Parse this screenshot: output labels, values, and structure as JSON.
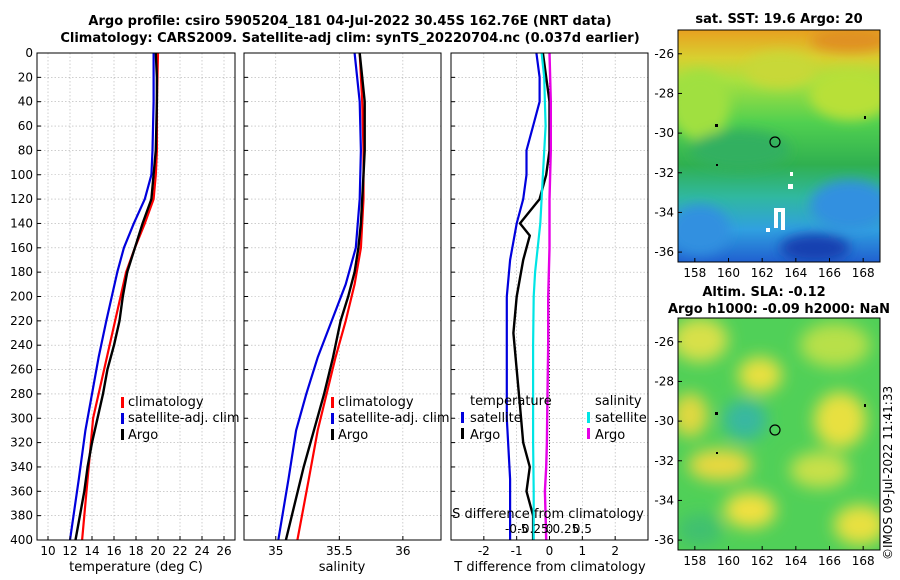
{
  "header": {
    "title_line1": "Argo profile: csiro 5905204_181 04-Jul-2022 30.45S 162.76E (NRT data)",
    "title_line2": "Climatology: CARS2009. Satellite-adj clim: synTS_20220704.nc (0.037d earlier)"
  },
  "colors": {
    "climatology": "#ff0000",
    "satellite": "#0000dd",
    "argo": "#000000",
    "sal_satellite": "#00e5e5",
    "sal_argo": "#e600e6",
    "grid": "#b0b0b0"
  },
  "chart_data": [
    {
      "id": "temperature",
      "type": "line",
      "xlabel": "temperature (deg C)",
      "ylabel": "",
      "xlim": [
        9,
        27
      ],
      "ylim": [
        400,
        0
      ],
      "xticks": [
        10,
        12,
        14,
        16,
        18,
        20,
        22,
        24,
        26
      ],
      "yticks": [
        0,
        20,
        40,
        60,
        80,
        100,
        120,
        140,
        160,
        180,
        200,
        220,
        240,
        260,
        280,
        300,
        320,
        340,
        360,
        380,
        400
      ],
      "legend": [
        "climatology",
        "satellite-adj. clim",
        "Argo"
      ],
      "series": [
        {
          "name": "climatology",
          "x": [
            20.0,
            19.9,
            19.9,
            19.8,
            19.6,
            18.8,
            17.9,
            17.1,
            16.6,
            16.1,
            15.6,
            15.1,
            14.6,
            14.1,
            13.6,
            13.1
          ],
          "depth": [
            0,
            40,
            80,
            100,
            120,
            140,
            160,
            180,
            200,
            220,
            240,
            260,
            280,
            300,
            350,
            400
          ]
        },
        {
          "name": "satellite-adj. clim",
          "x": [
            19.6,
            19.6,
            19.5,
            19.4,
            18.8,
            17.8,
            16.9,
            16.3,
            15.8,
            15.3,
            14.6,
            14.0,
            13.4,
            12.8,
            12.0
          ],
          "depth": [
            0,
            40,
            80,
            100,
            120,
            140,
            160,
            180,
            200,
            220,
            250,
            280,
            310,
            350,
            400
          ]
        },
        {
          "name": "Argo",
          "x": [
            19.8,
            19.9,
            19.9,
            19.8,
            19.4,
            18.6,
            17.9,
            17.2,
            16.8,
            16.5,
            16.0,
            15.4,
            15.0,
            14.5,
            14.0,
            13.6,
            13.3,
            12.5
          ],
          "depth": [
            0,
            20,
            40,
            80,
            120,
            140,
            160,
            180,
            200,
            220,
            240,
            260,
            280,
            300,
            320,
            340,
            360,
            400
          ]
        }
      ]
    },
    {
      "id": "salinity",
      "type": "line",
      "xlabel": "salinity",
      "ylabel": "",
      "xlim": [
        34.75,
        36.3
      ],
      "ylim": [
        400,
        0
      ],
      "xticks": [
        35,
        35.5,
        36
      ],
      "xticklabels": [
        "35",
        "35.5",
        "36"
      ],
      "legend": [
        "climatology",
        "satellite-adj. clim",
        "Argo"
      ],
      "series": [
        {
          "name": "climatology",
          "x": [
            35.66,
            35.68,
            35.69,
            35.69,
            35.67,
            35.62,
            35.55,
            35.47,
            35.4,
            35.33,
            35.26,
            35.17
          ],
          "depth": [
            0,
            40,
            80,
            120,
            160,
            190,
            220,
            250,
            280,
            310,
            350,
            400
          ]
        },
        {
          "name": "satellite-adj. clim",
          "x": [
            35.62,
            35.66,
            35.67,
            35.66,
            35.63,
            35.55,
            35.44,
            35.33,
            35.24,
            35.16,
            35.1,
            35.02
          ],
          "depth": [
            0,
            40,
            80,
            120,
            160,
            190,
            220,
            250,
            280,
            310,
            350,
            400
          ]
        },
        {
          "name": "Argo",
          "x": [
            35.66,
            35.68,
            35.7,
            35.7,
            35.69,
            35.67,
            35.65,
            35.62,
            35.57,
            35.51,
            35.45,
            35.38,
            35.3,
            35.22,
            35.08
          ],
          "depth": [
            0,
            20,
            40,
            80,
            100,
            140,
            160,
            180,
            200,
            220,
            250,
            280,
            310,
            340,
            400
          ]
        }
      ]
    },
    {
      "id": "difference",
      "type": "line",
      "xlabel": "T difference from climatology",
      "x2label": "S difference from climatology",
      "ylabel": "",
      "xlim": [
        -3,
        3
      ],
      "ylim": [
        400,
        0
      ],
      "xticks": [
        -2,
        -1,
        0,
        1,
        2
      ],
      "x2ticks": [
        "-0.5",
        "-0.25",
        "0",
        "0.25",
        "0.5"
      ],
      "legend": {
        "temperature": [
          "satellite",
          "Argo"
        ],
        "salinity": [
          "satellite",
          "Argo"
        ]
      },
      "legend_headers": {
        "temperature": "temperature",
        "salinity": "salinity"
      },
      "series": [
        {
          "name": "temperature satellite",
          "x": [
            -0.4,
            -0.3,
            -0.3,
            -0.5,
            -0.7,
            -0.7,
            -0.8,
            -1.0,
            -1.2,
            -1.3,
            -1.3,
            -1.3,
            -1.3,
            -1.2,
            -1.2
          ],
          "depth": [
            0,
            20,
            40,
            60,
            80,
            100,
            120,
            140,
            170,
            200,
            230,
            260,
            300,
            350,
            400
          ]
        },
        {
          "name": "temperature Argo",
          "x": [
            -0.2,
            -0.1,
            0.0,
            0.0,
            -0.1,
            -0.3,
            -0.6,
            -0.9,
            -0.6,
            -0.8,
            -1.0,
            -1.1,
            -1.0,
            -0.9,
            -0.8,
            -0.6,
            -0.7,
            -0.5,
            -0.5
          ],
          "depth": [
            0,
            20,
            40,
            80,
            100,
            120,
            130,
            140,
            150,
            170,
            200,
            230,
            260,
            290,
            320,
            340,
            360,
            380,
            400
          ]
        },
        {
          "name": "salinity satellite",
          "x": [
            -0.12,
            -0.08,
            -0.06,
            -0.1,
            -0.14,
            -0.18,
            -0.22,
            -0.24,
            -0.25,
            -0.25,
            -0.25,
            -0.24,
            -0.24
          ],
          "depth": [
            0,
            20,
            60,
            100,
            140,
            160,
            180,
            200,
            240,
            280,
            320,
            360,
            400
          ]
        },
        {
          "name": "salinity Argo",
          "x": [
            0.0,
            0.02,
            0.02,
            0.0,
            0.0,
            -0.02,
            -0.02,
            -0.03,
            -0.04,
            -0.05,
            -0.07,
            -0.06,
            -0.05
          ],
          "depth": [
            0,
            40,
            80,
            120,
            160,
            200,
            240,
            280,
            320,
            340,
            360,
            380,
            400
          ]
        }
      ]
    },
    {
      "id": "map-sst",
      "type": "heatmap",
      "title": "sat. SST: 19.6 Argo: 20",
      "xlim": [
        157,
        169
      ],
      "ylim": [
        -36.5,
        -24.8
      ],
      "xticks": [
        158,
        160,
        162,
        164,
        166,
        168
      ],
      "yticks": [
        -26,
        -28,
        -30,
        -32,
        -34,
        -36
      ],
      "marker": {
        "lon": 162.76,
        "lat": -30.45
      }
    },
    {
      "id": "map-sla",
      "type": "heatmap",
      "title_line1": "Altim. SLA: -0.12",
      "title_line2": "Argo h1000: -0.09 h2000: NaN",
      "xlim": [
        157,
        169
      ],
      "ylim": [
        -36.5,
        -24.8
      ],
      "xticks": [
        158,
        160,
        162,
        164,
        166,
        168
      ],
      "yticks": [
        -26,
        -28,
        -30,
        -32,
        -34,
        -36
      ],
      "marker": {
        "lon": 162.76,
        "lat": -30.45
      }
    }
  ],
  "watermark": "©IMOS 09-Jul-2022 11:41:33"
}
